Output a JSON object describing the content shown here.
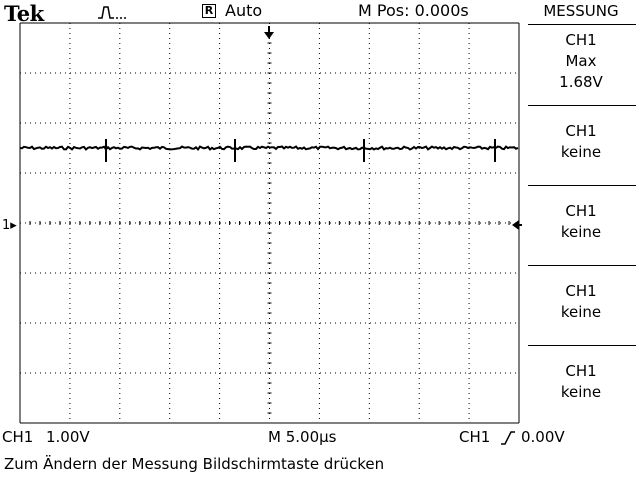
{
  "header": {
    "brand": "Tek",
    "trigger_icon": "pulse-trigger-icon",
    "run_status_glyph": "R",
    "run_mode": "Auto",
    "position": "M Pos: 0.000s"
  },
  "menu": {
    "title": "MESSUNG",
    "slots": [
      {
        "line1": "CH1",
        "line2": "Max",
        "line3": "1.68V"
      },
      {
        "line1": "CH1",
        "line2": "keine",
        "line3": ""
      },
      {
        "line1": "CH1",
        "line2": "keine",
        "line3": ""
      },
      {
        "line1": "CH1",
        "line2": "keine",
        "line3": ""
      },
      {
        "line1": "CH1",
        "line2": "keine",
        "line3": ""
      }
    ]
  },
  "channel_marker": "1",
  "status": {
    "channel": "CH1",
    "volts_div": "1.00V",
    "timebase": "M 5.00µs",
    "trigger_source": "CH1",
    "trigger_level": "0.00V"
  },
  "message": "Zum Ändern der Messung Bildschirmtaste drücken",
  "signal": {
    "level_divisions": 1.5,
    "vertical_divisions": 8,
    "horizontal_divisions": 10
  }
}
